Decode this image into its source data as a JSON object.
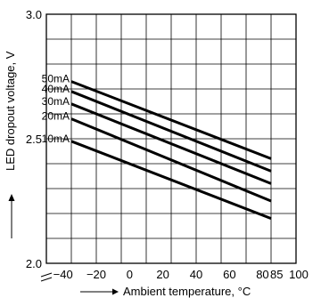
{
  "chart_data": {
    "type": "line",
    "title": "",
    "xlabel": "Ambient temperature, °C",
    "ylabel": "LED dropout voltage, V",
    "xlim": [
      -50,
      100
    ],
    "ylim": [
      2.0,
      3.0
    ],
    "x_ticks": [
      -40,
      -20,
      0,
      20,
      40,
      60,
      80,
      85,
      100
    ],
    "x_tick_labels": [
      "−40",
      "−20",
      "0",
      "20",
      "40",
      "60",
      "80",
      "85",
      "100"
    ],
    "y_ticks": [
      2.0,
      2.5,
      3.0
    ],
    "y_tick_labels": [
      "2.0",
      "2.5",
      "3.0"
    ],
    "axis_break": "y-axis near 2.0",
    "grid": true,
    "colors": {
      "line": "#000000",
      "grid": "#000000"
    },
    "series": [
      {
        "name": "50mA",
        "x": [
          -35,
          85
        ],
        "y": [
          2.73,
          2.42
        ]
      },
      {
        "name": "40mA",
        "x": [
          -35,
          85
        ],
        "y": [
          2.69,
          2.37
        ]
      },
      {
        "name": "30mA",
        "x": [
          -35,
          85
        ],
        "y": [
          2.64,
          2.32
        ]
      },
      {
        "name": "20mA",
        "x": [
          -35,
          85
        ],
        "y": [
          2.58,
          2.25
        ]
      },
      {
        "name": "10mA",
        "x": [
          -35,
          85
        ],
        "y": [
          2.49,
          2.18
        ]
      }
    ]
  }
}
